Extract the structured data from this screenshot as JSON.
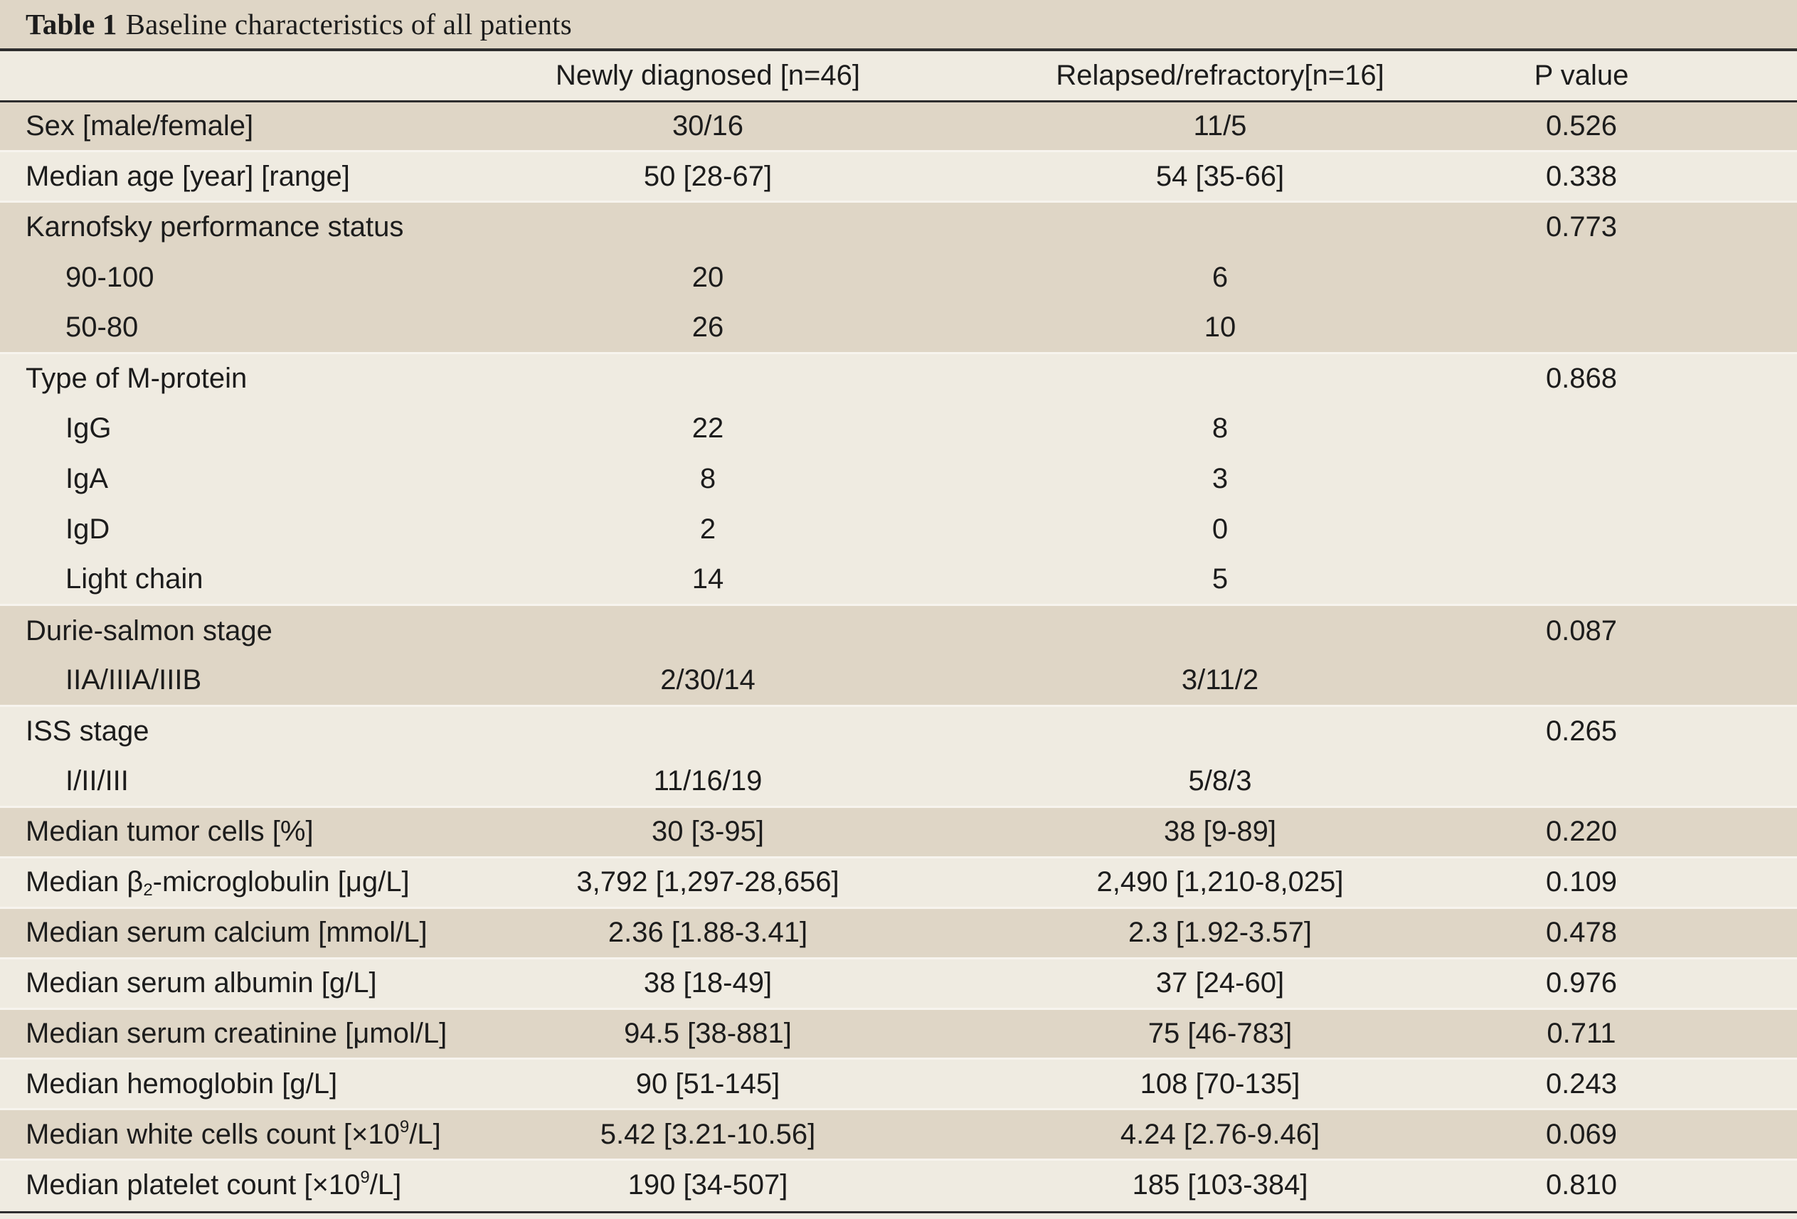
{
  "caption": {
    "label": "Table 1",
    "title": "Baseline characteristics of all patients"
  },
  "headers": [
    "",
    "Newly diagnosed [n=46]",
    "Relapsed/refractory[n=16]",
    "P value"
  ],
  "rows": [
    {
      "label": "Sex [male/female]",
      "newly": "30/16",
      "relapsed": "11/5",
      "p": "0.526",
      "indent": false,
      "shade": true,
      "group_start": true
    },
    {
      "label": "Median age [year] [range]",
      "newly": "50 [28-67]",
      "relapsed": "54 [35-66]",
      "p": "0.338",
      "indent": false,
      "shade": false,
      "group_start": true
    },
    {
      "label": "Karnofsky performance status",
      "newly": "",
      "relapsed": "",
      "p": "0.773",
      "indent": false,
      "shade": true,
      "group_start": true
    },
    {
      "label": "90-100",
      "newly": "20",
      "relapsed": "6",
      "p": "",
      "indent": true,
      "shade": true,
      "group_start": false
    },
    {
      "label": "50-80",
      "newly": "26",
      "relapsed": "10",
      "p": "",
      "indent": true,
      "shade": true,
      "group_start": false
    },
    {
      "label": "Type of M-protein",
      "newly": "",
      "relapsed": "",
      "p": "0.868",
      "indent": false,
      "shade": false,
      "group_start": true
    },
    {
      "label": "IgG",
      "newly": "22",
      "relapsed": "8",
      "p": "",
      "indent": true,
      "shade": false,
      "group_start": false
    },
    {
      "label": "IgA",
      "newly": "8",
      "relapsed": "3",
      "p": "",
      "indent": true,
      "shade": false,
      "group_start": false
    },
    {
      "label": "IgD",
      "newly": "2",
      "relapsed": "0",
      "p": "",
      "indent": true,
      "shade": false,
      "group_start": false
    },
    {
      "label": "Light chain",
      "newly": "14",
      "relapsed": "5",
      "p": "",
      "indent": true,
      "shade": false,
      "group_start": false
    },
    {
      "label": "Durie-salmon stage",
      "newly": "",
      "relapsed": "",
      "p": "0.087",
      "indent": false,
      "shade": true,
      "group_start": true
    },
    {
      "label": "IIA/IIIA/IIIB",
      "newly": "2/30/14",
      "relapsed": "3/11/2",
      "p": "",
      "indent": true,
      "shade": true,
      "group_start": false
    },
    {
      "label": "ISS stage",
      "newly": "",
      "relapsed": "",
      "p": "0.265",
      "indent": false,
      "shade": false,
      "group_start": true
    },
    {
      "label": "I/II/III",
      "newly": "11/16/19",
      "relapsed": "5/8/3",
      "p": "",
      "indent": true,
      "shade": false,
      "group_start": false
    },
    {
      "label": "Median tumor cells [%]",
      "newly": "30 [3-95]",
      "relapsed": "38 [9-89]",
      "p": "0.220",
      "indent": false,
      "shade": true,
      "group_start": true
    },
    {
      "label_parts": [
        "Median β",
        "2",
        "-microglobulin [μg/L]"
      ],
      "label_style": "sub",
      "label": "Median β2-microglobulin [μg/L]",
      "newly": "3,792 [1,297-28,656]",
      "relapsed": "2,490 [1,210-8,025]",
      "p": "0.109",
      "indent": false,
      "shade": false,
      "group_start": true
    },
    {
      "label": "Median serum calcium [mmol/L]",
      "newly": "2.36 [1.88-3.41]",
      "relapsed": "2.3 [1.92-3.57]",
      "p": "0.478",
      "indent": false,
      "shade": true,
      "group_start": true
    },
    {
      "label": "Median serum albumin [g/L]",
      "newly": "38 [18-49]",
      "relapsed": "37 [24-60]",
      "p": "0.976",
      "indent": false,
      "shade": false,
      "group_start": true
    },
    {
      "label": "Median serum creatinine [μmol/L]",
      "newly": "94.5 [38-881]",
      "relapsed": "75 [46-783]",
      "p": "0.711",
      "indent": false,
      "shade": true,
      "group_start": true
    },
    {
      "label": "Median hemoglobin [g/L]",
      "newly": "90 [51-145]",
      "relapsed": "108 [70-135]",
      "p": "0.243",
      "indent": false,
      "shade": false,
      "group_start": true
    },
    {
      "label_parts": [
        "Median white cells count [×10",
        "9",
        "/L]"
      ],
      "label_style": "sup",
      "label": "Median white cells count [×109/L]",
      "newly": "5.42 [3.21-10.56]",
      "relapsed": "4.24 [2.76-9.46]",
      "p": "0.069",
      "indent": false,
      "shade": true,
      "group_start": true
    },
    {
      "label_parts": [
        "Median platelet count [×10",
        "9",
        "/L]"
      ],
      "label_style": "sup",
      "label": "Median platelet count [×109/L]",
      "newly": "190 [34-507]",
      "relapsed": "185 [103-384]",
      "p": "0.810",
      "indent": false,
      "shade": false,
      "group_start": true
    }
  ]
}
